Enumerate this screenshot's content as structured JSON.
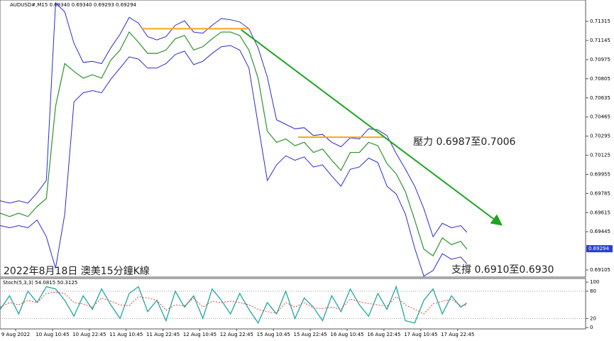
{
  "chart_data": [
    {
      "type": "line",
      "title": "AUDUSD#,M15  0.69340 0.69340 0.69293 0.69294",
      "x": [
        -5,
        -2,
        1,
        4,
        7,
        10,
        13,
        16,
        19,
        22,
        25,
        28,
        31,
        34,
        37,
        40,
        43,
        46,
        49,
        52,
        55,
        58,
        61,
        64,
        67,
        70,
        73,
        76,
        79,
        82,
        85,
        88,
        91,
        94,
        97,
        100,
        103,
        106,
        109,
        112,
        115,
        118,
        121,
        124,
        127,
        130,
        133,
        136,
        139,
        142,
        145,
        147
      ],
      "series": [
        {
          "color": "#3a9b3a",
          "values": [
            0.6961,
            0.6958,
            0.6961,
            0.6958,
            0.6967,
            0.6974,
            0.7056,
            0.7094,
            0.7087,
            0.7081,
            0.7084,
            0.7081,
            0.7097,
            0.7106,
            0.7122,
            0.7113,
            0.7103,
            0.7103,
            0.7106,
            0.7116,
            0.7119,
            0.7106,
            0.7109,
            0.7116,
            0.7122,
            0.7122,
            0.7119,
            0.7106,
            0.7081,
            0.7034,
            0.7024,
            0.7027,
            0.7021,
            0.7024,
            0.7015,
            0.7018,
            0.7008,
            0.6999,
            0.7015,
            0.7015,
            0.7024,
            0.7021,
            0.7005,
            0.6996,
            0.698,
            0.6955,
            0.6929,
            0.6923,
            0.6939,
            0.6933,
            0.6936,
            0.6929
          ]
        },
        {
          "color": "#2b2bd6",
          "values": [
            0.6972,
            0.697,
            0.6972,
            0.697,
            0.6979,
            0.699,
            0.7148,
            0.714,
            0.7112,
            0.7095,
            0.7096,
            0.7094,
            0.7108,
            0.712,
            0.7135,
            0.713,
            0.7118,
            0.7115,
            0.7118,
            0.7128,
            0.7132,
            0.7122,
            0.7121,
            0.7128,
            0.7134,
            0.7133,
            0.7131,
            0.7125,
            0.7108,
            0.7082,
            0.7044,
            0.704,
            0.7036,
            0.7037,
            0.703,
            0.7031,
            0.7024,
            0.702,
            0.7028,
            0.7027,
            0.7036,
            0.7035,
            0.703,
            0.7014,
            0.7,
            0.6985,
            0.6965,
            0.694,
            0.6952,
            0.6948,
            0.695,
            0.6944
          ]
        },
        {
          "color": "#2b2bd6",
          "values": [
            0.695,
            0.6948,
            0.695,
            0.6948,
            0.6955,
            0.694,
            0.6912,
            0.696,
            0.706,
            0.7068,
            0.707,
            0.7068,
            0.708,
            0.709,
            0.71,
            0.7098,
            0.709,
            0.709,
            0.7094,
            0.7102,
            0.7105,
            0.7093,
            0.7096,
            0.7103,
            0.7109,
            0.711,
            0.7106,
            0.709,
            0.704,
            0.699,
            0.7004,
            0.7012,
            0.7008,
            0.7011,
            0.7002,
            0.7004,
            0.6994,
            0.6985,
            0.7,
            0.7002,
            0.701,
            0.7006,
            0.6985,
            0.6978,
            0.696,
            0.693,
            0.6905,
            0.691,
            0.6925,
            0.692,
            0.6922,
            0.6916
          ]
        }
      ],
      "xlim": [
        -5.1,
        185.7
      ],
      "ylim": [
        0.69042,
        0.71505
      ],
      "yticks": [
        0.71315,
        0.71145,
        0.70975,
        0.70805,
        0.70635,
        0.70465,
        0.70295,
        0.70125,
        0.69955,
        0.69785,
        0.69615,
        0.69445,
        0.69105
      ],
      "current_price": 0.69294,
      "lines": [
        {
          "color": "#ffa31a",
          "x": [
            41.2,
            75.8
          ],
          "y": [
            0.7125,
            0.7125
          ]
        },
        {
          "color": "#ffa31a",
          "x": [
            92.0,
            119.8
          ],
          "y": [
            0.70285,
            0.70285
          ]
        },
        {
          "color": "#1ea51e",
          "arrow": true,
          "x": [
            73.5,
            157.9
          ],
          "y": [
            0.7124,
            0.69514
          ]
        }
      ],
      "annotations": [
        "2022年8月18日 澳美15分鐘K線",
        "壓力 0.6987至0.7006",
        "支撐 0.6910至0.6930"
      ]
    },
    {
      "type": "line",
      "title": "Stoch(5,3,3) 54.0815 50.3125",
      "x": [
        -5,
        -2,
        1,
        4,
        7,
        10,
        13,
        16,
        19,
        22,
        25,
        28,
        31,
        34,
        37,
        40,
        43,
        46,
        49,
        52,
        55,
        58,
        61,
        64,
        67,
        70,
        73,
        76,
        79,
        82,
        85,
        88,
        91,
        94,
        97,
        100,
        103,
        106,
        109,
        112,
        115,
        118,
        121,
        124,
        127,
        130,
        133,
        136,
        139,
        142,
        145,
        147
      ],
      "series": [
        {
          "color": "#20a8a0",
          "values": [
            40,
            70,
            30,
            80,
            55,
            90,
            85,
            60,
            25,
            70,
            40,
            85,
            50,
            20,
            75,
            90,
            35,
            60,
            15,
            80,
            45,
            70,
            20,
            85,
            60,
            30,
            75,
            40,
            10,
            55,
            30,
            80,
            20,
            65,
            45,
            15,
            70,
            35,
            85,
            50,
            25,
            75,
            40,
            90,
            15,
            10,
            60,
            85,
            30,
            70,
            45,
            54
          ]
        },
        {
          "color": "#e0443c",
          "dash": true,
          "values": [
            45,
            55,
            50,
            60,
            55,
            75,
            78,
            75,
            55,
            52,
            45,
            65,
            58,
            50,
            48,
            68,
            65,
            60,
            38,
            50,
            48,
            65,
            45,
            58,
            55,
            58,
            55,
            50,
            40,
            35,
            32,
            55,
            45,
            55,
            43,
            42,
            45,
            40,
            63,
            57,
            53,
            50,
            47,
            68,
            50,
            40,
            30,
            52,
            58,
            62,
            48,
            50
          ]
        }
      ],
      "xlim": [
        -5.1,
        185.7
      ],
      "ylim": [
        -3,
        108
      ],
      "yticks": [
        0,
        20,
        80,
        100
      ],
      "levels": [
        20,
        80
      ],
      "xticks": [
        {
          "value": 0,
          "label": "9 Aug 2022"
        },
        {
          "value": 12,
          "label": "10 Aug 10:45"
        },
        {
          "value": 24,
          "label": "10 Aug 22:45"
        },
        {
          "value": 36,
          "label": "11 Aug 10:45"
        },
        {
          "value": 48,
          "label": "11 Aug 22:45"
        },
        {
          "value": 60,
          "label": "12 Aug 10:45"
        },
        {
          "value": 72,
          "label": "12 Aug 22:45"
        },
        {
          "value": 84,
          "label": "15 Aug 10:45"
        },
        {
          "value": 96,
          "label": "15 Aug 22:45"
        },
        {
          "value": 108,
          "label": "16 Aug 10:45"
        },
        {
          "value": 120,
          "label": "16 Aug 22:45"
        },
        {
          "value": 132,
          "label": "17 Aug 10:45"
        },
        {
          "value": 144,
          "label": "17 Aug 22:45"
        }
      ]
    }
  ]
}
